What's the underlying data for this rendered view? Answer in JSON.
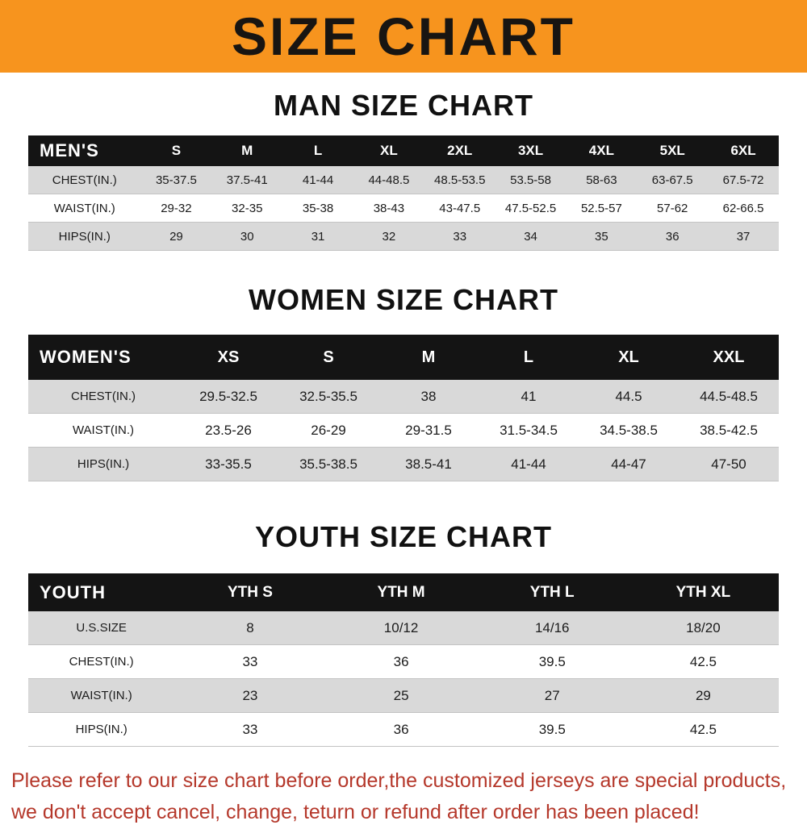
{
  "banner": {
    "title": "SIZE CHART",
    "bg_color": "#F7941E"
  },
  "chart_data": [
    {
      "type": "table",
      "title": "MAN SIZE CHART",
      "columns": [
        "MEN'S",
        "S",
        "M",
        "L",
        "XL",
        "2XL",
        "3XL",
        "4XL",
        "5XL",
        "6XL"
      ],
      "rows": [
        [
          "CHEST(IN.)",
          "35-37.5",
          "37.5-41",
          "41-44",
          "44-48.5",
          "48.5-53.5",
          "53.5-58",
          "58-63",
          "63-67.5",
          "67.5-72"
        ],
        [
          "WAIST(IN.)",
          "29-32",
          "32-35",
          "35-38",
          "38-43",
          "43-47.5",
          "47.5-52.5",
          "52.5-57",
          "57-62",
          "62-66.5"
        ],
        [
          "HIPS(IN.)",
          "29",
          "30",
          "31",
          "32",
          "33",
          "34",
          "35",
          "36",
          "37"
        ]
      ]
    },
    {
      "type": "table",
      "title": "WOMEN SIZE CHART",
      "columns": [
        "WOMEN'S",
        "XS",
        "S",
        "M",
        "L",
        "XL",
        "XXL"
      ],
      "rows": [
        [
          "CHEST(IN.)",
          "29.5-32.5",
          "32.5-35.5",
          "38",
          "41",
          "44.5",
          "44.5-48.5"
        ],
        [
          "WAIST(IN.)",
          "23.5-26",
          "26-29",
          "29-31.5",
          "31.5-34.5",
          "34.5-38.5",
          "38.5-42.5"
        ],
        [
          "HIPS(IN.)",
          "33-35.5",
          "35.5-38.5",
          "38.5-41",
          "41-44",
          "44-47",
          "47-50"
        ]
      ]
    },
    {
      "type": "table",
      "title": "YOUTH SIZE CHART",
      "columns": [
        "YOUTH",
        "YTH S",
        "YTH M",
        "YTH L",
        "YTH XL"
      ],
      "rows": [
        [
          "U.S.SIZE",
          "8",
          "10/12",
          "14/16",
          "18/20"
        ],
        [
          "CHEST(IN.)",
          "33",
          "36",
          "39.5",
          "42.5"
        ],
        [
          "WAIST(IN.)",
          "23",
          "25",
          "27",
          "29"
        ],
        [
          "HIPS(IN.)",
          "33",
          "36",
          "39.5",
          "42.5"
        ]
      ]
    }
  ],
  "footer": {
    "line1": "Please refer to our size chart before order,the customized jerseys are special products,",
    "line2": "we don't accept cancel, change, teturn or refund after order has been placed!",
    "color": "#b5382b"
  }
}
